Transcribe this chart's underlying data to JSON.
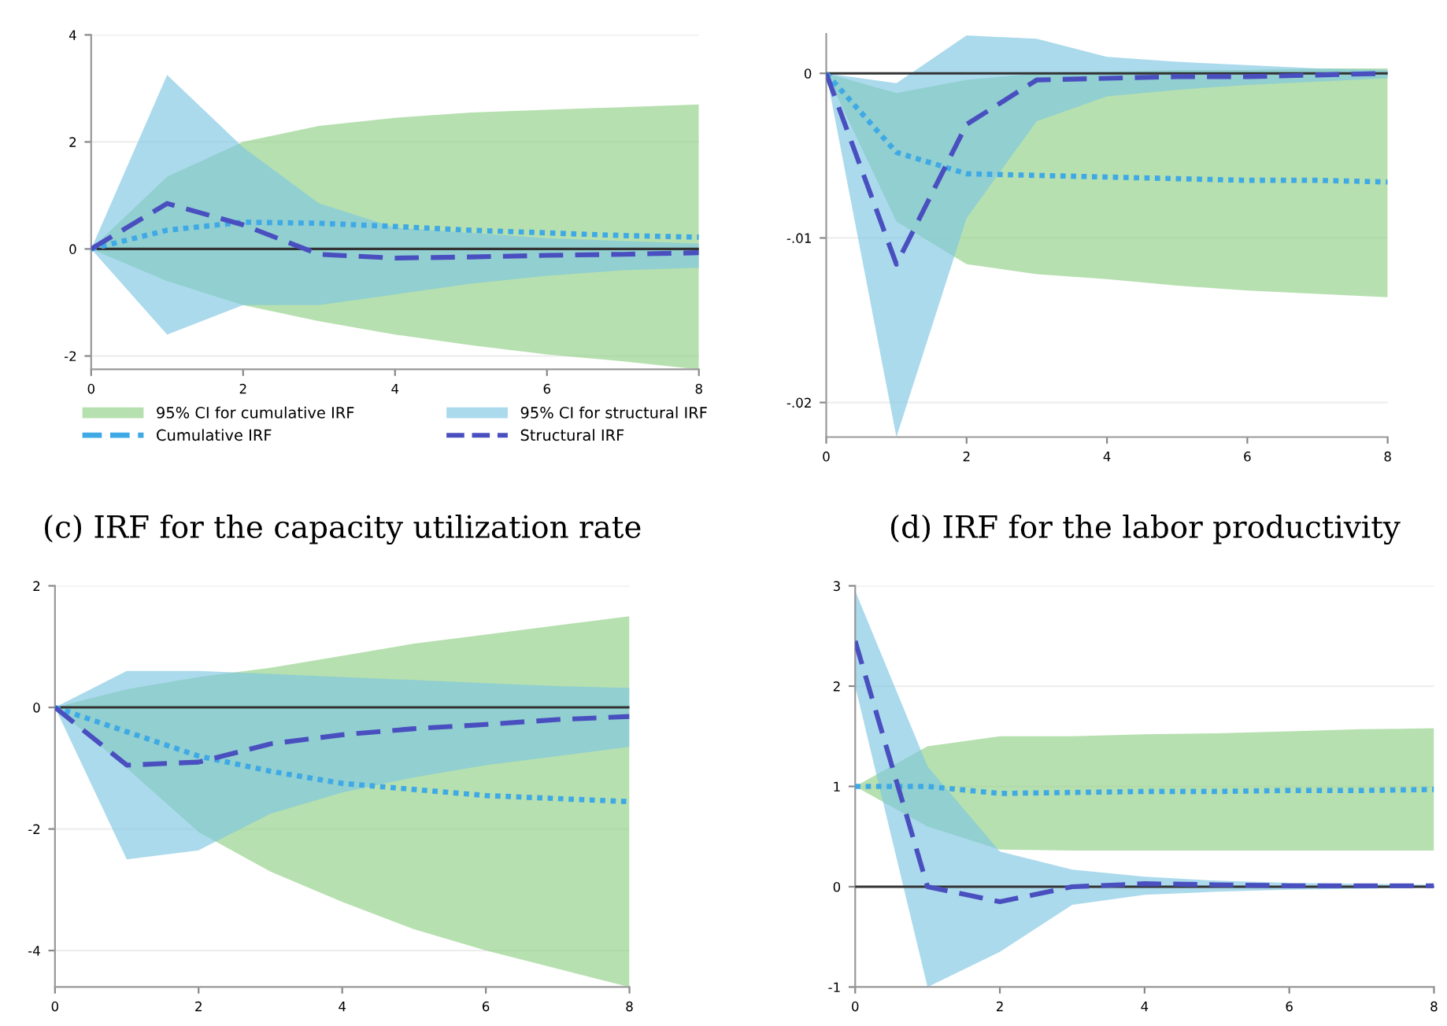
{
  "chart_data": [
    {
      "type": "line",
      "x": [
        0,
        1,
        2,
        3,
        4,
        5,
        6,
        7,
        8
      ],
      "xlim": [
        0,
        8
      ],
      "xticks": [
        0,
        2,
        4,
        6,
        8
      ],
      "ylim": [
        -2.25,
        4
      ],
      "yticks": [
        -2,
        0,
        2,
        4
      ],
      "grid": "y",
      "legend": "bottom",
      "ref_lines": [
        {
          "axis": "y",
          "value": 0,
          "color": "#333333"
        }
      ],
      "series": [
        {
          "name": "95% CI for cumulative IRF",
          "color": "#8fcf84",
          "values": [
            null,
            null,
            null,
            null,
            null,
            null,
            null,
            null,
            null
          ],
          "lower": [
            0,
            -0.6,
            -1.05,
            -1.35,
            -1.6,
            -1.8,
            -1.97,
            -2.1,
            -2.25
          ],
          "upper": [
            0,
            1.35,
            2.0,
            2.3,
            2.45,
            2.55,
            2.6,
            2.65,
            2.7
          ]
        },
        {
          "name": "95% CI for structural IRF",
          "color": "#7ec6e2",
          "values": [
            null,
            null,
            null,
            null,
            null,
            null,
            null,
            null,
            null
          ],
          "lower": [
            0,
            -1.6,
            -1.05,
            -1.05,
            -0.85,
            -0.65,
            -0.5,
            -0.4,
            -0.35
          ],
          "upper": [
            0,
            3.25,
            1.9,
            0.85,
            0.4,
            0.3,
            0.2,
            0.15,
            0.1
          ]
        },
        {
          "name": "Cumulative IRF",
          "color": "#3fa9e6",
          "line_style": "dotted",
          "values": [
            0,
            0.35,
            0.5,
            0.48,
            0.42,
            0.35,
            0.3,
            0.25,
            0.22
          ]
        },
        {
          "name": "Structural IRF",
          "color": "#4a4fc0",
          "line_style": "dashed",
          "values": [
            0,
            0.85,
            0.45,
            -0.1,
            -0.17,
            -0.15,
            -0.12,
            -0.1,
            -0.07
          ]
        }
      ]
    },
    {
      "type": "line",
      "x": [
        0,
        1,
        2,
        3,
        4,
        5,
        6,
        7,
        8
      ],
      "xlim": [
        0,
        8
      ],
      "xticks": [
        0,
        2,
        4,
        6,
        8
      ],
      "ylim": [
        -0.0221,
        0.0024
      ],
      "yticks": [
        {
          "value": -0.02,
          "label": "-.02"
        },
        {
          "value": -0.01,
          "label": "-.01"
        },
        0
      ],
      "grid": "y",
      "ref_lines": [
        {
          "axis": "y",
          "value": 0,
          "color": "#333333"
        }
      ],
      "series": [
        {
          "color": "#8fcf84",
          "values": [
            null,
            null,
            null,
            null,
            null,
            null,
            null,
            null,
            null
          ],
          "lower": [
            0,
            -0.009,
            -0.0116,
            -0.0122,
            -0.0125,
            -0.0129,
            -0.0132,
            -0.0134,
            -0.0136
          ],
          "upper": [
            0,
            -0.0012,
            -0.0004,
            0,
            0.0001,
            0.0002,
            0.0002,
            0.0003,
            0.0003
          ]
        },
        {
          "color": "#7ec6e2",
          "values": [
            null,
            null,
            null,
            null,
            null,
            null,
            null,
            null,
            null
          ],
          "lower": [
            0,
            -0.0221,
            -0.0088,
            -0.0029,
            -0.0014,
            -0.001,
            -0.0007,
            -0.0005,
            -0.0003
          ],
          "upper": [
            0,
            -0.0006,
            0.0023,
            0.0021,
            0.001,
            0.0007,
            0.0005,
            0.0003,
            0.0002
          ]
        },
        {
          "color": "#3fa9e6",
          "line_style": "dotted",
          "values": [
            0,
            -0.0048,
            -0.0061,
            -0.0062,
            -0.0063,
            -0.0064,
            -0.0065,
            -0.0065,
            -0.0066
          ]
        },
        {
          "color": "#4a4fc0",
          "line_style": "dashed",
          "values": [
            0,
            -0.0116,
            -0.0031,
            -0.0004,
            -0.0003,
            -0.0002,
            -0.0002,
            -0.0001,
            0
          ]
        }
      ]
    },
    {
      "type": "line",
      "title": "(c) IRF for the capacity utilization rate",
      "x": [
        0,
        1,
        2,
        3,
        4,
        5,
        6,
        7,
        8
      ],
      "xlim": [
        0,
        8
      ],
      "xticks": [
        0,
        2,
        4,
        6,
        8
      ],
      "ylim": [
        -4.6,
        2
      ],
      "yticks": [
        -4,
        -2,
        0,
        2
      ],
      "grid": "y",
      "ref_lines": [
        {
          "axis": "y",
          "value": 0,
          "color": "#333333"
        }
      ],
      "series": [
        {
          "color": "#8fcf84",
          "values": [
            null,
            null,
            null,
            null,
            null,
            null,
            null,
            null,
            null
          ],
          "lower": [
            0,
            -1.0,
            -2.05,
            -2.7,
            -3.2,
            -3.65,
            -4.0,
            -4.3,
            -4.6
          ],
          "upper": [
            0,
            0.3,
            0.5,
            0.65,
            0.85,
            1.05,
            1.2,
            1.35,
            1.5
          ]
        },
        {
          "color": "#7ec6e2",
          "values": [
            null,
            null,
            null,
            null,
            null,
            null,
            null,
            null,
            null
          ],
          "lower": [
            0,
            -2.5,
            -2.35,
            -1.75,
            -1.4,
            -1.15,
            -0.95,
            -0.8,
            -0.65
          ],
          "upper": [
            0,
            0.6,
            0.6,
            0.55,
            0.5,
            0.45,
            0.4,
            0.35,
            0.32
          ]
        },
        {
          "color": "#3fa9e6",
          "line_style": "dotted",
          "values": [
            0,
            -0.4,
            -0.8,
            -1.05,
            -1.25,
            -1.35,
            -1.45,
            -1.5,
            -1.55
          ]
        },
        {
          "color": "#4a4fc0",
          "line_style": "dashed",
          "values": [
            0,
            -0.95,
            -0.9,
            -0.6,
            -0.45,
            -0.35,
            -0.28,
            -0.2,
            -0.15
          ]
        }
      ]
    },
    {
      "type": "line",
      "title": "(d) IRF for the labor productivity",
      "x": [
        0,
        1,
        2,
        3,
        4,
        5,
        6,
        7,
        8
      ],
      "xlim": [
        0,
        8
      ],
      "xticks": [
        0,
        2,
        4,
        6,
        8
      ],
      "ylim": [
        -1,
        3
      ],
      "yticks": [
        -1,
        0,
        1,
        2,
        3
      ],
      "grid": "y",
      "ref_lines": [
        {
          "axis": "y",
          "value": 0,
          "color": "#333333"
        }
      ],
      "series": [
        {
          "color": "#8fcf84",
          "values": [
            null,
            null,
            null,
            null,
            null,
            null,
            null,
            null,
            null
          ],
          "lower": [
            1.0,
            0.6,
            0.37,
            0.36,
            0.36,
            0.36,
            0.36,
            0.36,
            0.36
          ],
          "upper": [
            1.0,
            1.4,
            1.5,
            1.5,
            1.52,
            1.53,
            1.55,
            1.57,
            1.58
          ]
        },
        {
          "color": "#7ec6e2",
          "values": [
            null,
            null,
            null,
            null,
            null,
            null,
            null,
            null,
            null
          ],
          "lower": [
            2.0,
            -1.0,
            -0.65,
            -0.18,
            -0.08,
            -0.05,
            -0.03,
            -0.02,
            -0.01
          ],
          "upper": [
            2.95,
            1.2,
            0.35,
            0.17,
            0.1,
            0.06,
            0.04,
            0.03,
            0.02
          ]
        },
        {
          "color": "#3fa9e6",
          "line_style": "dotted",
          "values": [
            1.0,
            1.0,
            0.93,
            0.94,
            0.95,
            0.95,
            0.96,
            0.96,
            0.97
          ]
        },
        {
          "color": "#4a4fc0",
          "line_style": "dashed",
          "values": [
            2.45,
            0.0,
            -0.15,
            0.0,
            0.03,
            0.02,
            0.01,
            0.01,
            0.01
          ]
        }
      ]
    }
  ]
}
